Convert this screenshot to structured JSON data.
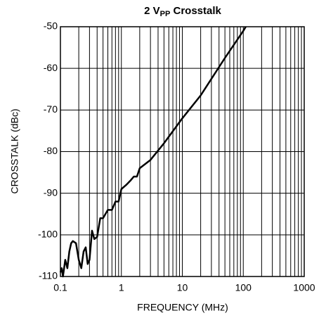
{
  "chart_data": {
    "type": "line",
    "title": [
      "2 V",
      "PP",
      " Crosstalk"
    ],
    "xlabel": "FREQUENCY (MHz)",
    "ylabel": "CROSSTALK (dBc)",
    "xscale": "log",
    "grid": true,
    "xlim": [
      0.1,
      1000
    ],
    "ylim": [
      -110,
      -50
    ],
    "xticks": [
      0.1,
      1,
      10,
      100,
      1000
    ],
    "xminorticks": [
      0.2,
      0.3,
      0.4,
      0.5,
      0.6,
      0.7,
      0.8,
      0.9,
      2,
      3,
      4,
      5,
      6,
      7,
      8,
      9,
      20,
      30,
      40,
      50,
      60,
      70,
      80,
      90,
      200,
      300,
      400,
      500,
      600,
      700,
      800,
      900
    ],
    "yticks": [
      -110,
      -100,
      -90,
      -80,
      -70,
      -60,
      -50
    ],
    "series": [
      {
        "color": "#000000",
        "x": [
          0.1,
          0.105,
          0.11,
          0.12,
          0.13,
          0.14,
          0.15,
          0.16,
          0.18,
          0.2,
          0.22,
          0.24,
          0.26,
          0.28,
          0.3,
          0.33,
          0.36,
          0.4,
          0.45,
          0.5,
          0.6,
          0.7,
          0.8,
          0.9,
          1.0,
          1.2,
          1.4,
          1.6,
          1.8,
          2.0,
          3,
          5,
          10,
          20,
          50,
          100,
          110
        ],
        "values": [
          -109,
          -108,
          -110,
          -106,
          -108,
          -104,
          -102,
          -101.5,
          -102,
          -106,
          -108,
          -104,
          -103,
          -107,
          -106,
          -99,
          -101,
          -100.5,
          -96,
          -96,
          -94,
          -94,
          -92,
          -92,
          -89,
          -88,
          -87,
          -86,
          -86,
          -84,
          -82,
          -78,
          -72,
          -66.5,
          -57.5,
          -51,
          -50
        ]
      }
    ]
  }
}
